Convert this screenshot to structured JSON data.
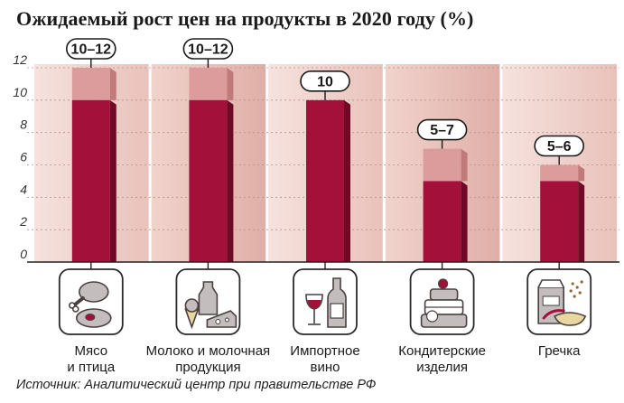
{
  "header": {
    "title": "Ожидаемый рост цен на продукты в 2020 году (%)"
  },
  "footer": {
    "source": "Источник: Аналитический центр при правительстве РФ"
  },
  "colors": {
    "bar_dark": "#a3103a",
    "bar_dark_side": "#6e0a26",
    "bar_light": "#dd9c9c",
    "bar_light_side": "#c07a7a",
    "panel_a": "#f3d8d2",
    "panel_b": "#e6bdb6",
    "icon_fill": "#c4bdbd",
    "icon_stroke": "#4a4040",
    "icon_accent": "#a3103a"
  },
  "chart_data": {
    "type": "bar",
    "title": "Ожидаемый рост цен на продукты в 2020 году (%)",
    "ylim": [
      0,
      12
    ],
    "yticks": [
      0,
      2,
      4,
      6,
      8,
      10,
      12
    ],
    "grid": true,
    "categories": [
      [
        "Мясо",
        "и птица"
      ],
      [
        "Молоко и молочная",
        "продукция"
      ],
      [
        "Импортное",
        "вино"
      ],
      [
        "Кондитерские",
        "изделия"
      ],
      [
        "Гречка"
      ]
    ],
    "series": [
      {
        "role": "low",
        "values": [
          10,
          10,
          10,
          5,
          5
        ]
      },
      {
        "role": "high",
        "values": [
          12,
          12,
          10,
          7,
          6
        ]
      }
    ],
    "labels": [
      "10–12",
      "10–12",
      "10",
      "5–7",
      "5–6"
    ],
    "icons": [
      "meat-icon",
      "dairy-icon",
      "wine-icon",
      "cake-icon",
      "buckwheat-icon"
    ]
  }
}
